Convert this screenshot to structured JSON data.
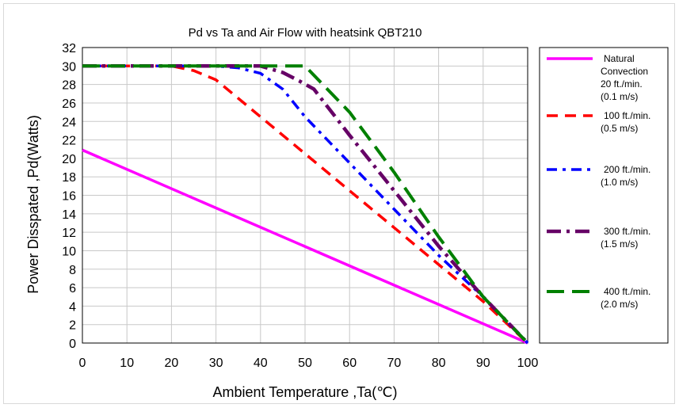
{
  "chart_data": {
    "type": "line",
    "title": "Pd vs Ta and Air Flow with heatsink QBT210",
    "xlabel": "Ambient Temperature ,Ta(℃)",
    "ylabel": "Power Disspated ,Pd(Watts)",
    "xlim": [
      0,
      100
    ],
    "ylim": [
      0,
      32
    ],
    "xticks": [
      0,
      10,
      20,
      30,
      40,
      50,
      60,
      70,
      80,
      90,
      100
    ],
    "yticks": [
      0,
      2,
      4,
      6,
      8,
      10,
      12,
      14,
      16,
      18,
      20,
      22,
      24,
      26,
      28,
      30,
      32
    ],
    "grid": true,
    "legend_position": "right",
    "series": [
      {
        "name": "Natural Convection 20 ft./min. (0.1 m/s)",
        "legend_lines": [
          "Natural",
          "Convection",
          "20 ft./min.",
          "(0.1 m/s)"
        ],
        "color": "#ff00ff",
        "style": "solid",
        "x": [
          0,
          100
        ],
        "y": [
          20.9,
          0
        ]
      },
      {
        "name": "100 ft./min. (0.5 m/s)",
        "legend_lines": [
          "100 ft./min.",
          "(0.5 m/s)"
        ],
        "color": "#ff0000",
        "style": "dash",
        "x": [
          0,
          20,
          25,
          30,
          35,
          40,
          50,
          60,
          70,
          80,
          90,
          100
        ],
        "y": [
          30,
          30,
          29.5,
          28.5,
          26.5,
          24.5,
          20.5,
          16.5,
          12.5,
          8.5,
          4.5,
          0
        ]
      },
      {
        "name": "200 ft./min. (1.0 m/s)",
        "legend_lines": [
          "200 ft./min.",
          "(1.0 m/s)"
        ],
        "color": "#0000ff",
        "style": "dashdot",
        "x": [
          0,
          30,
          35,
          40,
          45,
          50,
          60,
          70,
          80,
          90,
          100
        ],
        "y": [
          30,
          30,
          29.8,
          29.2,
          27.5,
          24.5,
          19.5,
          14.5,
          9.5,
          5,
          0
        ]
      },
      {
        "name": "300 ft./min. (1.5 m/s)",
        "legend_lines": [
          "300 ft./min.",
          "(1.5 m/s)"
        ],
        "color": "#660066",
        "style": "longdashdot",
        "x": [
          0,
          40,
          45,
          49,
          52,
          60,
          70,
          80,
          90,
          100
        ],
        "y": [
          30,
          30,
          29.3,
          28.3,
          27.5,
          22.5,
          16.5,
          10.5,
          5,
          0
        ]
      },
      {
        "name": "400 ft./min. (2.0 m/s)",
        "legend_lines": [
          "400 ft./min.",
          "(2.0 m/s)"
        ],
        "color": "#008000",
        "style": "longdash",
        "x": [
          0,
          50,
          55,
          60,
          70,
          80,
          90,
          95,
          100
        ],
        "y": [
          30,
          30,
          27.5,
          25,
          18.5,
          11.5,
          5,
          2.5,
          0
        ]
      }
    ]
  }
}
